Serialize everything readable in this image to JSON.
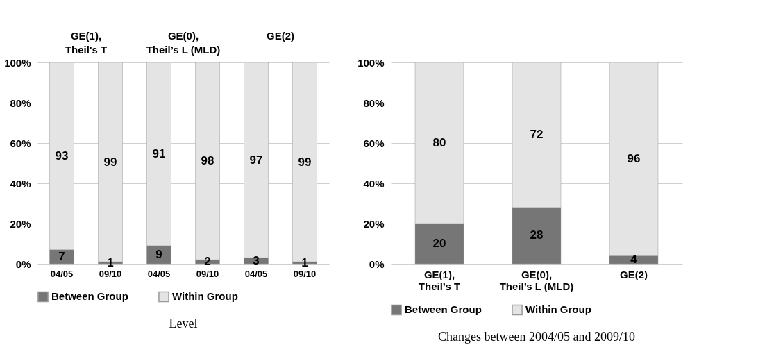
{
  "chart_data": [
    {
      "type": "bar",
      "stacked": true,
      "categories": [
        "04/05",
        "09/10",
        "04/05",
        "09/10",
        "04/05",
        "09/10"
      ],
      "series": [
        {
          "name": "Between Group",
          "color": "#767676",
          "values": [
            7,
            1,
            9,
            2,
            3,
            1
          ]
        },
        {
          "name": "Within Group",
          "color": "#e4e4e4",
          "values": [
            93,
            99,
            91,
            98,
            97,
            99
          ]
        }
      ],
      "ylim": [
        0,
        100
      ],
      "yticks": [
        {
          "value": 0,
          "label": "0%"
        },
        {
          "value": 20,
          "label": "20%"
        },
        {
          "value": 40,
          "label": "40%"
        },
        {
          "value": 60,
          "label": "60%"
        },
        {
          "value": 80,
          "label": "80%"
        },
        {
          "value": 100,
          "label": "100%"
        }
      ],
      "grid": "y",
      "legend": "bottom",
      "data_labels": true,
      "annotations": [
        "GE(1), Theil's T",
        "GE(0), Theil’s L (MLD)",
        "GE(2)",
        "Level"
      ]
    },
    {
      "type": "bar",
      "stacked": true,
      "categories": [
        "GE(1), Theil’s T",
        "GE(0), Theil’s L (MLD)",
        "GE(2)"
      ],
      "series": [
        {
          "name": "Between Group",
          "color": "#767676",
          "values": [
            20,
            28,
            4
          ]
        },
        {
          "name": "Within Group",
          "color": "#e4e4e4",
          "values": [
            80,
            72,
            96
          ]
        }
      ],
      "ylim": [
        0,
        100
      ],
      "yticks": [
        {
          "value": 0,
          "label": "0%"
        },
        {
          "value": 20,
          "label": "20%"
        },
        {
          "value": 40,
          "label": "40%"
        },
        {
          "value": 60,
          "label": "60%"
        },
        {
          "value": 80,
          "label": "80%"
        },
        {
          "value": 100,
          "label": "100%"
        }
      ],
      "grid": "y",
      "legend": "bottom",
      "data_labels": true,
      "annotations": [
        "Changes between 2004/05 and 2009/10"
      ]
    }
  ]
}
